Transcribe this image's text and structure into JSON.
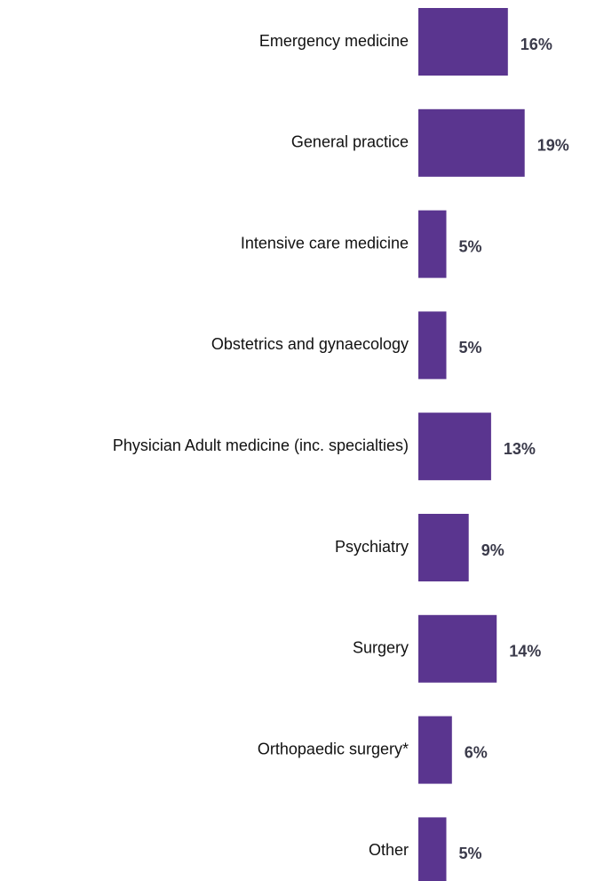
{
  "chart_data": {
    "type": "bar",
    "orientation": "horizontal",
    "categories": [
      "Emergency medicine",
      "General practice",
      "Intensive care medicine",
      "Obstetrics and gynaecology",
      "Physician Adult medicine (inc. specialties)",
      "Psychiatry",
      "Surgery",
      "Orthopaedic surgery*",
      "Other"
    ],
    "values": [
      16,
      19,
      5,
      5,
      13,
      9,
      14,
      6,
      5
    ],
    "value_labels": [
      "16%",
      "19%",
      "5%",
      "5%",
      "13%",
      "9%",
      "14%",
      "6%",
      "5%"
    ],
    "color": "#5a358f"
  }
}
